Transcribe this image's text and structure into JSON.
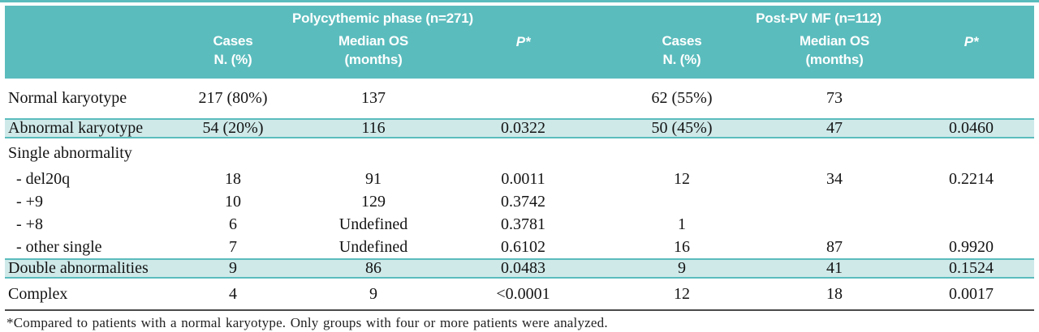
{
  "table": {
    "groups": [
      {
        "title": "Polycythemic phase (n=271)"
      },
      {
        "title": "Post-PV MF (n=112)"
      }
    ],
    "subheaders": {
      "cases_line1": "Cases",
      "cases_line2": "N. (%)",
      "os_line1": "Median OS",
      "os_line2": "(months)",
      "p": "P*"
    },
    "rows": [
      {
        "label": "Normal karyotype",
        "cells": [
          "217 (80%)",
          "137",
          "",
          "62 (55%)",
          "73",
          ""
        ]
      },
      {
        "label": "Abnormal karyotype",
        "cells": [
          "54 (20%)",
          "116",
          "0.0322",
          "50 (45%)",
          "47",
          "0.0460"
        ]
      },
      {
        "label": "Single abnormality",
        "cells": [
          "",
          "",
          "",
          "",
          "",
          ""
        ]
      },
      {
        "label": "- del20q",
        "cells": [
          "18",
          "91",
          "0.0011",
          "12",
          "34",
          "0.2214"
        ]
      },
      {
        "label": "- +9",
        "cells": [
          "10",
          "129",
          "0.3742",
          "",
          "",
          ""
        ]
      },
      {
        "label": "- +8",
        "cells": [
          "6",
          "Undefined",
          "0.3781",
          "1",
          "",
          ""
        ]
      },
      {
        "label": "- other single",
        "cells": [
          "7",
          "Undefined",
          "0.6102",
          "16",
          "87",
          "0.9920"
        ]
      },
      {
        "label": "Double abnormalities",
        "cells": [
          "9",
          "86",
          "0.0483",
          "9",
          "41",
          "0.1524"
        ]
      },
      {
        "label": "Complex",
        "cells": [
          "4",
          "9",
          "<0.0001",
          "12",
          "18",
          "0.0017"
        ]
      }
    ],
    "footnote": "*Compared to patients with a normal karyotype. Only groups with four or more patients were analyzed.",
    "colors": {
      "header_teal": "#5bbcbd",
      "highlight_teal": "#cfe9e9",
      "rule_dark": "#4a4a4a"
    }
  }
}
